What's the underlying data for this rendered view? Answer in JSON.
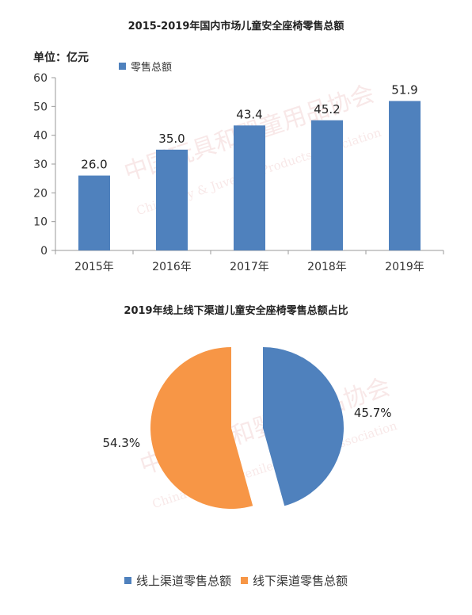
{
  "charts": {
    "bar_title": "2015-2019年国内市场儿童安全座椅零售总额",
    "unit_label": "单位：亿元",
    "bar_legend": "零售总额",
    "pie_title": "2019年线上线下渠道儿童安全座椅零售总额占比",
    "pie_legend": [
      "线上渠道零售总额",
      "线下渠道零售总额"
    ]
  },
  "colors": {
    "bar": "#4f81bd",
    "online": "#4f81bd",
    "offline": "#f79646",
    "axis": "#999999"
  },
  "watermark": {
    "cn": "中国玩具和婴童用品协会",
    "en": "China Toy & Juvenile Products Association"
  },
  "chart_data": [
    {
      "type": "bar",
      "title": "2015-2019年国内市场儿童安全座椅零售总额",
      "ylabel": "单位：亿元",
      "categories": [
        "2015年",
        "2016年",
        "2017年",
        "2018年",
        "2019年"
      ],
      "series": [
        {
          "name": "零售总额",
          "values": [
            26.0,
            35.0,
            43.4,
            45.2,
            51.9
          ]
        }
      ],
      "data_labels": [
        "26.0",
        "35.0",
        "43.4",
        "45.2",
        "51.9"
      ],
      "yticks": [
        "0",
        "10",
        "20",
        "30",
        "40",
        "50",
        "60"
      ],
      "ylim": [
        0,
        60
      ],
      "grid": false,
      "legend": "top-left"
    },
    {
      "type": "pie",
      "title": "2019年线上线下渠道儿童安全座椅零售总额占比",
      "labels": [
        "线上渠道零售总额",
        "线下渠道零售总额"
      ],
      "values": [
        45.7,
        54.3
      ],
      "data_labels": [
        "45.7%",
        "54.3%"
      ],
      "exploded": true,
      "legend": "bottom"
    }
  ]
}
